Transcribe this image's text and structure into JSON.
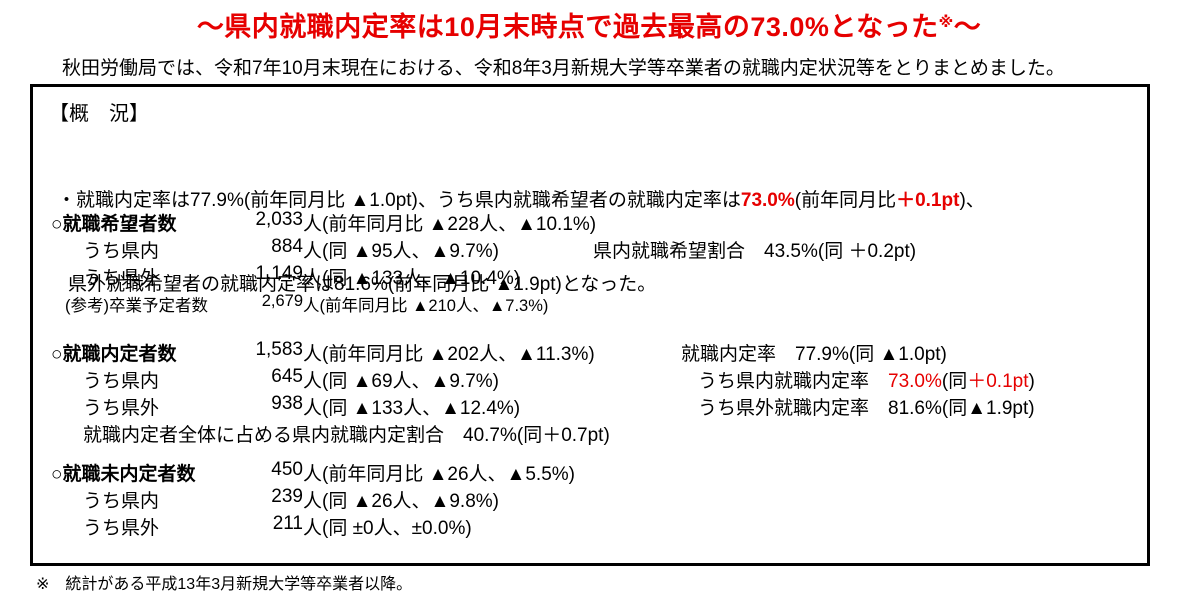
{
  "title": {
    "main": "〜県内就職内定率は10月末時点で過去最高の73.0%となった",
    "sup": "※",
    "tail": "〜"
  },
  "intro": "秋田労働局では、令和7年10月末現在における、令和8年3月新規大学等卒業者の就職内定状況等をとりまとめました。",
  "overview": {
    "heading": "【概　況】",
    "bullet": {
      "l1_pre": "・就職内定率は77.9%(前年同月比 ▲1.0pt)、うち県内就職希望者の就職内定率は",
      "l1_red1": "73.0%",
      "l1_mid": "(前年同月比",
      "l1_red2": "＋0.1pt",
      "l1_post": ")、",
      "l2": "県外就職希望者の就職内定率は81.6%(前年同月比 ▲1.9pt)となった。"
    }
  },
  "sections": [
    {
      "title": "○就職希望者数",
      "rows": [
        {
          "num": "2,033",
          "rest": "人(前年同月比 ▲228人、▲10.1%)"
        },
        {
          "label": "うち県内",
          "num": "884",
          "rest": "人(同 ▲95人、▲9.7%)",
          "right": "県内就職希望割合　43.5%(同 ＋0.2pt)"
        },
        {
          "label": "うち県外",
          "num": "1,149",
          "rest": "人(同 ▲133人、▲10.4%)"
        },
        {
          "label": "(参考)卒業予定者数",
          "num": "2,679",
          "rest": "人(前年同月比 ▲210人、▲7.3%)"
        }
      ]
    },
    {
      "title": "○就職内定者数",
      "rows": [
        {
          "num": "1,583",
          "rest": "人(前年同月比 ▲202人、▲11.3%)",
          "right": "就職内定率　77.9%(同 ▲1.0pt)"
        },
        {
          "label": "うち県内",
          "num": "645",
          "rest": "人(同 ▲69人、▲9.7%)",
          "right_pre": "うち県内就職内定率　",
          "right_red1": "73.0%",
          "right_mid": "(同",
          "right_red2": "＋0.1pt",
          "right_post": ")"
        },
        {
          "label": "うち県外",
          "num": "938",
          "rest": "人(同 ▲133人、▲12.4%)",
          "right": "うち県外就職内定率　81.6%(同▲1.9pt)"
        },
        {
          "full": "就職内定者全体に占める県内就職内定割合　40.7%(同＋0.7pt)"
        }
      ]
    },
    {
      "title": "○就職未内定者数",
      "rows": [
        {
          "num": "450",
          "rest": "人(前年同月比 ▲26人、▲5.5%)"
        },
        {
          "label": "うち県内",
          "num": "239",
          "rest": "人(同 ▲26人、▲9.8%)"
        },
        {
          "label": "うち県外",
          "num": "211",
          "rest": "人(同 ±0人、±0.0%)"
        }
      ]
    }
  ],
  "footnote": {
    "mark": "※",
    "text": "統計がある平成13年3月新規大学等卒業者以降。"
  }
}
